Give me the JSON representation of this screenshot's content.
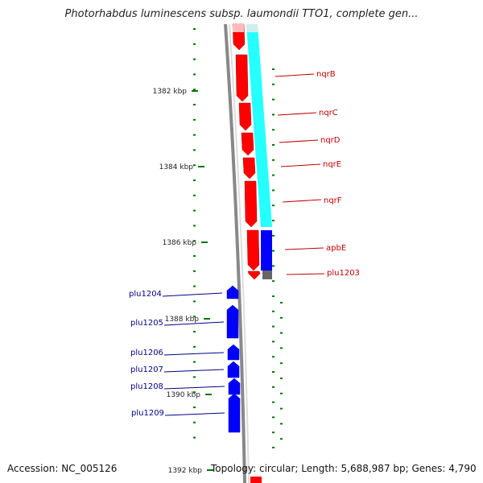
{
  "title": "Photorhabdus luminescens subsp. laumondii TTO1, complete gen...",
  "accession": "Accession: NC_005126",
  "footer_info": "Topology: circular; Length: 5,688,987 bp; Genes: 4,790",
  "colors": {
    "forward_gene": "#ff0000",
    "reverse_gene": "#0000ff",
    "operon_band": "#00ffff",
    "backbone": "#888888",
    "ticks": "#007700",
    "label_red": "#c00000",
    "label_blue": "#00008b"
  },
  "axis_labels": [
    "1382 kbp",
    "1384 kbp",
    "1386 kbp",
    "1388 kbp",
    "1390 kbp",
    "1392 kbp"
  ],
  "genes_right": [
    "nqrB",
    "nqrC",
    "nqrD",
    "nqrE",
    "nqrF",
    "apbE",
    "plu1203"
  ],
  "genes_left": [
    "plu1204",
    "plu1205",
    "plu1206",
    "plu1207",
    "plu1208",
    "plu1209"
  ]
}
